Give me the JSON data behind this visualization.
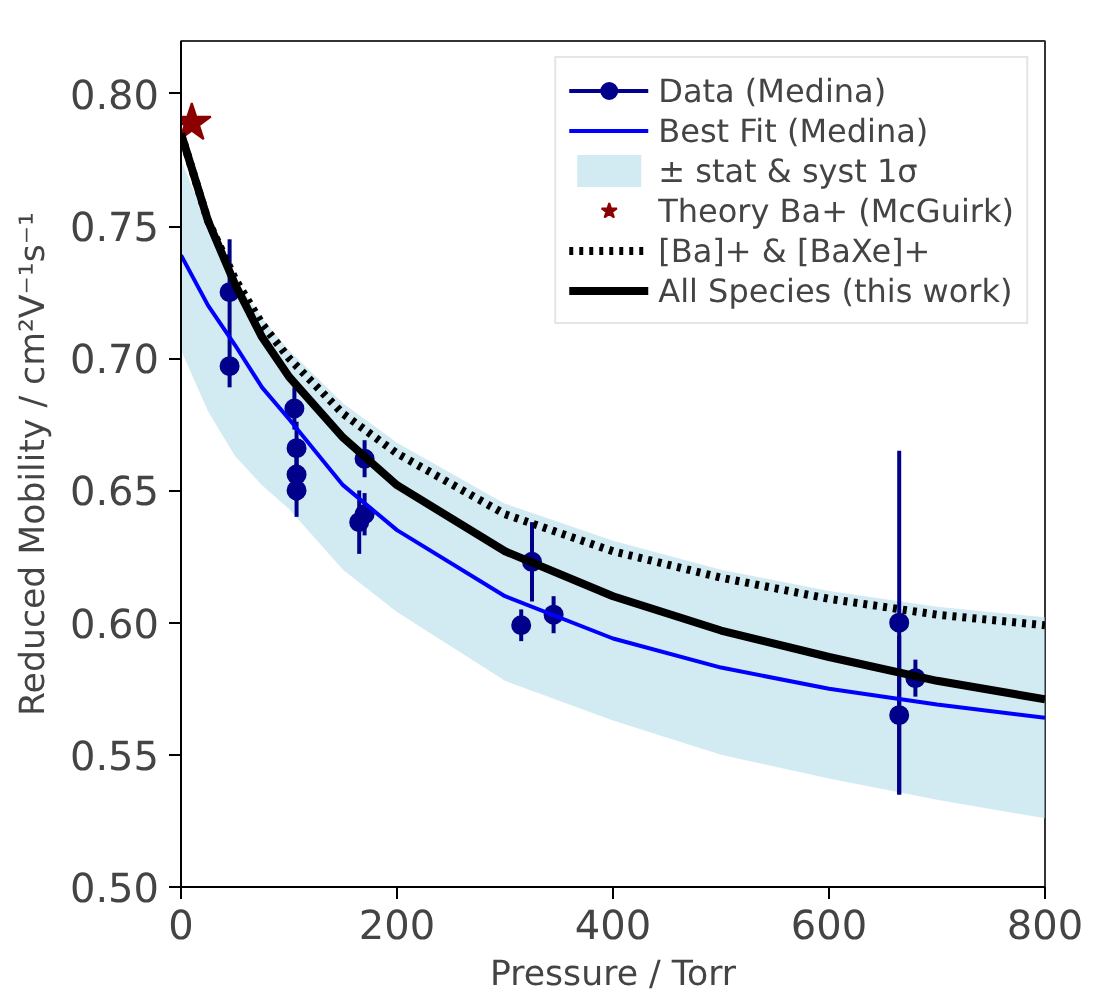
{
  "chart_data": {
    "type": "scatter",
    "xlabel": "Pressure / Torr",
    "ylabel": "Reduced Mobility / cm²V⁻¹s⁻¹",
    "xlim": [
      0,
      800
    ],
    "ylim": [
      0.5,
      0.82
    ],
    "xticks": [
      0,
      200,
      400,
      600,
      800
    ],
    "yticks": [
      {
        "value": 0.5,
        "label": "0.50"
      },
      {
        "value": 0.55,
        "label": "0.55"
      },
      {
        "value": 0.6,
        "label": "0.60"
      },
      {
        "value": 0.65,
        "label": "0.65"
      },
      {
        "value": 0.7,
        "label": "0.70"
      },
      {
        "value": 0.75,
        "label": "0.75"
      },
      {
        "value": 0.8,
        "label": "0.80"
      }
    ],
    "grid": false,
    "legend": "top right",
    "series": [
      {
        "name": "Data (Medina)",
        "marker": "circle",
        "color": "#00008b",
        "x": [
          45,
          45,
          105,
          107,
          107,
          107,
          165,
          170,
          170,
          315,
          325,
          345,
          665,
          665,
          680
        ],
        "values": [
          0.725,
          0.697,
          0.681,
          0.666,
          0.656,
          0.65,
          0.638,
          0.641,
          0.662,
          0.599,
          0.623,
          0.603,
          0.6,
          0.565,
          0.579
        ],
        "errors": [
          0.02,
          0.008,
          0.008,
          0.01,
          0.01,
          0.01,
          0.012,
          0.008,
          0.007,
          0.006,
          0.015,
          0.007,
          0.065,
          0.03,
          0.007
        ]
      },
      {
        "name": "Best Fit (Medina)",
        "type": "line",
        "line_style": "solid",
        "color": "#0000ff",
        "x": [
          0,
          25,
          50,
          75,
          100,
          150,
          200,
          300,
          400,
          500,
          600,
          700,
          800
        ],
        "values": [
          0.739,
          0.72,
          0.705,
          0.689,
          0.677,
          0.652,
          0.635,
          0.61,
          0.594,
          0.583,
          0.575,
          0.569,
          0.564
        ]
      },
      {
        "name": "± stat & syst 1σ",
        "type": "area",
        "color": "#add8e6",
        "x": [
          0,
          25,
          50,
          75,
          100,
          150,
          200,
          300,
          400,
          500,
          600,
          700,
          800
        ],
        "values": [
          null,
          null,
          null,
          null,
          null,
          null,
          null,
          null,
          null,
          null,
          null,
          null,
          null
        ],
        "lower": [
          0.703,
          0.68,
          0.663,
          0.652,
          0.643,
          0.62,
          0.604,
          0.578,
          0.563,
          0.55,
          0.541,
          0.533,
          0.526
        ],
        "upper": [
          0.775,
          0.75,
          0.73,
          0.715,
          0.703,
          0.683,
          0.668,
          0.645,
          0.631,
          0.62,
          0.612,
          0.606,
          0.602
        ]
      },
      {
        "name": "Theory Ba+ (McGuirk)",
        "marker": "star",
        "color": "#8b0000",
        "x": [
          10
        ],
        "values": [
          0.789
        ]
      },
      {
        "name": "[Ba]+ & [BaXe]+",
        "type": "line",
        "line_style": "dotted",
        "color": "#000000",
        "x": [
          0,
          25,
          50,
          75,
          100,
          150,
          200,
          300,
          400,
          500,
          600,
          700,
          800
        ],
        "values": [
          0.785,
          0.752,
          0.73,
          0.713,
          0.7,
          0.679,
          0.664,
          0.641,
          0.627,
          0.617,
          0.609,
          0.603,
          0.599
        ]
      },
      {
        "name": "All Species (this work)",
        "type": "line",
        "line_style": "solid",
        "color": "#000000",
        "x": [
          0,
          25,
          50,
          75,
          100,
          150,
          200,
          300,
          400,
          500,
          600,
          700,
          800
        ],
        "values": [
          0.785,
          0.752,
          0.728,
          0.708,
          0.693,
          0.67,
          0.652,
          0.627,
          0.61,
          0.597,
          0.587,
          0.578,
          0.571
        ]
      }
    ]
  }
}
